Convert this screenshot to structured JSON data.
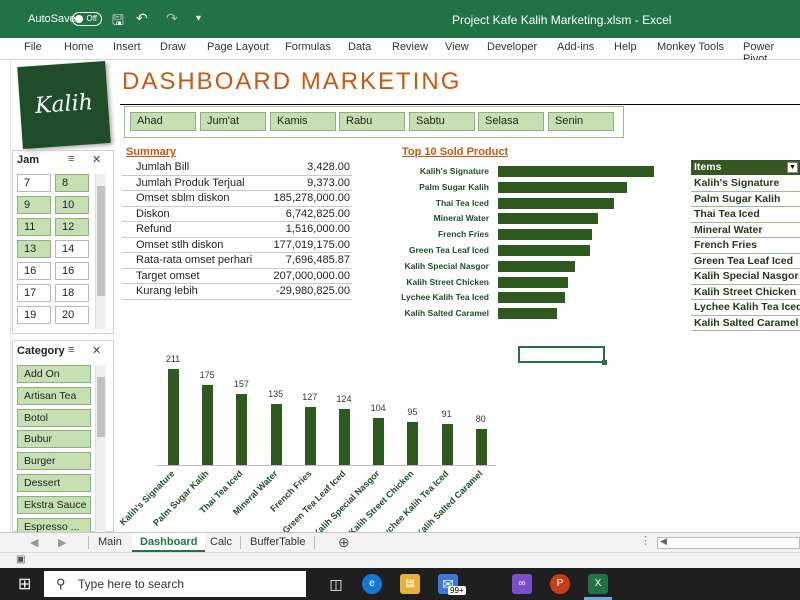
{
  "titlebar": {
    "autosave": "AutoSave",
    "autosave_state": "Off",
    "title": "Project Kafe Kalih Marketing.xlsm  -  Excel"
  },
  "ribbon": [
    "File",
    "Home",
    "Insert",
    "Draw",
    "Page Layout",
    "Formulas",
    "Data",
    "Review",
    "View",
    "Developer",
    "Add-ins",
    "Help",
    "Monkey Tools",
    "Power Pivot"
  ],
  "logo_text": "Kalih",
  "dashboard_title": "DASHBOARD MARKETING",
  "days": [
    "Ahad",
    "Jum'at",
    "Kamis",
    "Rabu",
    "Sabtu",
    "Selasa",
    "Senin"
  ],
  "jam_slicer": {
    "title": "Jam",
    "items": [
      {
        "label": "7",
        "selected": false
      },
      {
        "label": "8",
        "selected": true
      },
      {
        "label": "9",
        "selected": true
      },
      {
        "label": "10",
        "selected": true
      },
      {
        "label": "11",
        "selected": true
      },
      {
        "label": "12",
        "selected": true
      },
      {
        "label": "13",
        "selected": true
      },
      {
        "label": "14",
        "selected": false
      },
      {
        "label": "16",
        "selected": false
      },
      {
        "label": "16",
        "selected": false
      },
      {
        "label": "17",
        "selected": false
      },
      {
        "label": "18",
        "selected": false
      },
      {
        "label": "19",
        "selected": false
      },
      {
        "label": "20",
        "selected": false
      }
    ]
  },
  "category_slicer": {
    "title": "Category",
    "items": [
      "Add On",
      "Artisan Tea",
      "Botol",
      "Bubur",
      "Burger",
      "Dessert",
      "Ekstra Sauce",
      "Espresso ..."
    ]
  },
  "summary": {
    "title": "Summary",
    "rows": [
      {
        "label": "Jumlah Bill",
        "value": "3,428.00"
      },
      {
        "label": "Jumlah Produk Terjual",
        "value": "9,373.00"
      },
      {
        "label": "Omset sblm diskon",
        "value": "185,278,000.00"
      },
      {
        "label": "Diskon",
        "value": "6,742,825.00"
      },
      {
        "label": "Refund",
        "value": "1,516,000.00"
      },
      {
        "label": "Omset stlh diskon",
        "value": "177,019,175.00"
      },
      {
        "label": "Rata-rata omset perhari",
        "value": "7,696,485.87"
      },
      {
        "label": "Target omset",
        "value": "207,000,000.00"
      },
      {
        "label": "Kurang lebih",
        "value": "-29,980,825.00"
      }
    ]
  },
  "top10": {
    "title": "Top 10 Sold Product"
  },
  "items_table": {
    "header": "Items",
    "rows": [
      "Kalih's Signature",
      "Palm Sugar Kalih",
      "Thai Tea Iced",
      "Mineral Water",
      "French Fries",
      "Green Tea Leaf Iced",
      "Kalih Special Nasgor",
      "Kalih Street Chicken",
      "Lychee Kalih Tea Iced",
      "Kalih Salted Caramel"
    ]
  },
  "chart_data": [
    {
      "type": "bar",
      "orientation": "horizontal",
      "title": "Top 10 Sold Product",
      "categories": [
        "Kalih's Signature",
        "Palm Sugar Kalih",
        "Thai Tea Iced",
        "Mineral Water",
        "French Fries",
        "Green Tea Leaf Iced",
        "Kalih Special Nasgor",
        "Kalih Street Chicken",
        "Lychee Kalih Tea Iced",
        "Kalih Salted Caramel"
      ],
      "values": [
        211,
        175,
        157,
        135,
        127,
        124,
        104,
        95,
        91,
        80
      ],
      "color": "#2f5a1f"
    },
    {
      "type": "bar",
      "orientation": "vertical",
      "title": "",
      "categories": [
        "Kalih's Signature",
        "Palm Sugar Kalih",
        "Thai Tea Iced",
        "Mineral Water",
        "French Fries",
        "Green Tea Leaf Iced",
        "Kalih Special Nasgor",
        "Kalih Street Chicken",
        "Lychee Kalih Tea Iced",
        "Kalih Salted Caramel"
      ],
      "values": [
        211,
        175,
        157,
        135,
        127,
        124,
        104,
        95,
        91,
        80
      ],
      "ylim": [
        0,
        211
      ],
      "color": "#2f5a1f"
    }
  ],
  "tabs": [
    {
      "label": "Main",
      "active": false
    },
    {
      "label": "Dashboard",
      "active": true
    },
    {
      "label": "Calc",
      "active": false
    },
    {
      "label": "BufferTable",
      "active": false
    }
  ],
  "taskbar": {
    "search_placeholder": "Type here to search",
    "badge": "99+"
  },
  "colors": {
    "excel_green": "#217346",
    "accent_orange": "#c55a11",
    "bar_green": "#2f5a1f",
    "slicer_fill": "#c6e0b4"
  }
}
